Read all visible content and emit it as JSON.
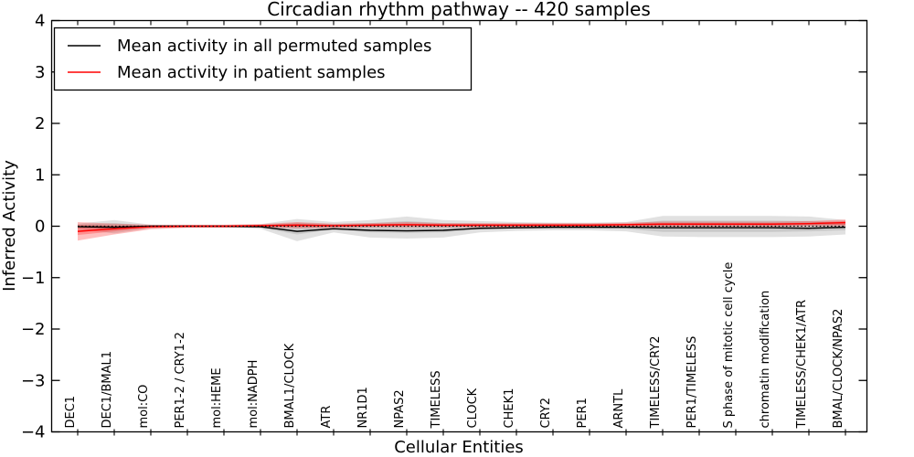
{
  "chart_data": {
    "type": "line",
    "title": "Circadian rhythm pathway -- 420 samples",
    "xlabel": "Cellular Entities",
    "ylabel": "Inferred Activity",
    "ylim": [
      -4,
      4
    ],
    "yticks": [
      -4,
      -3,
      -2,
      -1,
      0,
      1,
      2,
      3,
      4
    ],
    "grid": false,
    "legend_position": "upper left",
    "frame": true,
    "categories": [
      "DEC1",
      "DEC1/BMAL1",
      "mol:CO",
      "PER1-2 / CRY1-2",
      "mol:HEME",
      "mol:NADPH",
      "BMAL1/CLOCK",
      "ATR",
      "NR1D1",
      "NPAS2",
      "TIMELESS",
      "CLOCK",
      "CHEK1",
      "CRY2",
      "PER1",
      "ARNTL",
      "TIMELESS/CRY2",
      "PER1/TIMELESS",
      "S phase of mitotic cell cycle",
      "chromatin modification",
      "TIMELESS/CHEK1/ATR",
      "BMAL/CLOCK/NPAS2"
    ],
    "series": [
      {
        "name": "Mean activity in all permuted samples",
        "color": "#000000",
        "values": [
          -0.01,
          -0.02,
          0.0,
          0.0,
          0.0,
          -0.01,
          -0.1,
          -0.05,
          -0.08,
          -0.09,
          -0.08,
          -0.04,
          -0.03,
          -0.02,
          -0.02,
          -0.02,
          -0.03,
          -0.03,
          -0.03,
          -0.03,
          -0.04,
          -0.02
        ]
      },
      {
        "name": "Mean activity in patient samples",
        "color": "#ff0000",
        "values": [
          -0.1,
          -0.05,
          -0.01,
          0.0,
          0.0,
          0.01,
          0.02,
          0.01,
          0.02,
          0.03,
          0.02,
          0.02,
          0.02,
          0.02,
          0.02,
          0.03,
          0.04,
          0.04,
          0.04,
          0.04,
          0.05,
          0.07
        ]
      }
    ],
    "bands": [
      {
        "name": "permuted-spread-outer",
        "fill": "rgba(120,120,120,0.22)",
        "upper": [
          0.05,
          0.12,
          0.03,
          0.02,
          0.02,
          0.04,
          0.14,
          0.08,
          0.12,
          0.19,
          0.12,
          0.1,
          0.08,
          0.07,
          0.07,
          0.08,
          0.2,
          0.2,
          0.2,
          0.2,
          0.19,
          0.12
        ],
        "lower": [
          -0.06,
          -0.14,
          -0.04,
          -0.02,
          -0.02,
          -0.05,
          -0.29,
          -0.12,
          -0.22,
          -0.24,
          -0.22,
          -0.12,
          -0.09,
          -0.08,
          -0.08,
          -0.1,
          -0.2,
          -0.21,
          -0.21,
          -0.21,
          -0.2,
          -0.16
        ]
      },
      {
        "name": "permuted-spread-inner",
        "fill": "rgba(120,120,120,0.22)",
        "upper": [
          0.03,
          0.06,
          0.02,
          0.01,
          0.01,
          0.02,
          0.07,
          0.04,
          0.06,
          0.1,
          0.06,
          0.05,
          0.04,
          0.04,
          0.04,
          0.04,
          0.11,
          0.11,
          0.11,
          0.11,
          0.1,
          0.07
        ],
        "lower": [
          -0.03,
          -0.07,
          -0.02,
          -0.01,
          -0.01,
          -0.03,
          -0.16,
          -0.06,
          -0.12,
          -0.13,
          -0.12,
          -0.06,
          -0.05,
          -0.04,
          -0.04,
          -0.05,
          -0.11,
          -0.11,
          -0.11,
          -0.11,
          -0.1,
          -0.08
        ]
      },
      {
        "name": "patient-spread-outer",
        "fill": "rgba(255,0,0,0.25)",
        "upper": [
          0.08,
          0.05,
          0.03,
          0.03,
          0.03,
          0.04,
          0.08,
          0.05,
          0.06,
          0.08,
          0.06,
          0.06,
          0.06,
          0.06,
          0.06,
          0.07,
          0.09,
          0.09,
          0.09,
          0.09,
          0.1,
          0.13
        ],
        "lower": [
          -0.28,
          -0.16,
          -0.06,
          -0.03,
          -0.03,
          -0.02,
          -0.04,
          -0.03,
          -0.02,
          -0.02,
          -0.02,
          -0.02,
          -0.02,
          -0.02,
          -0.02,
          -0.01,
          -0.01,
          -0.01,
          -0.01,
          -0.01,
          0.0,
          0.0
        ]
      },
      {
        "name": "patient-spread-inner",
        "fill": "rgba(255,0,0,0.25)",
        "upper": [
          0.02,
          0.01,
          0.01,
          0.02,
          0.02,
          0.03,
          0.05,
          0.03,
          0.04,
          0.05,
          0.04,
          0.04,
          0.04,
          0.04,
          0.04,
          0.05,
          0.06,
          0.06,
          0.06,
          0.06,
          0.07,
          0.1
        ],
        "lower": [
          -0.17,
          -0.1,
          -0.03,
          -0.02,
          -0.02,
          -0.01,
          -0.01,
          -0.01,
          0.0,
          0.01,
          0.0,
          0.0,
          0.0,
          0.0,
          0.0,
          0.01,
          0.02,
          0.02,
          0.02,
          0.02,
          0.03,
          0.03
        ]
      }
    ],
    "reference_line": {
      "y": 0,
      "style": "dotted",
      "color": "#000000"
    },
    "colors": {
      "frame": "#000000",
      "background": "#ffffff"
    }
  }
}
